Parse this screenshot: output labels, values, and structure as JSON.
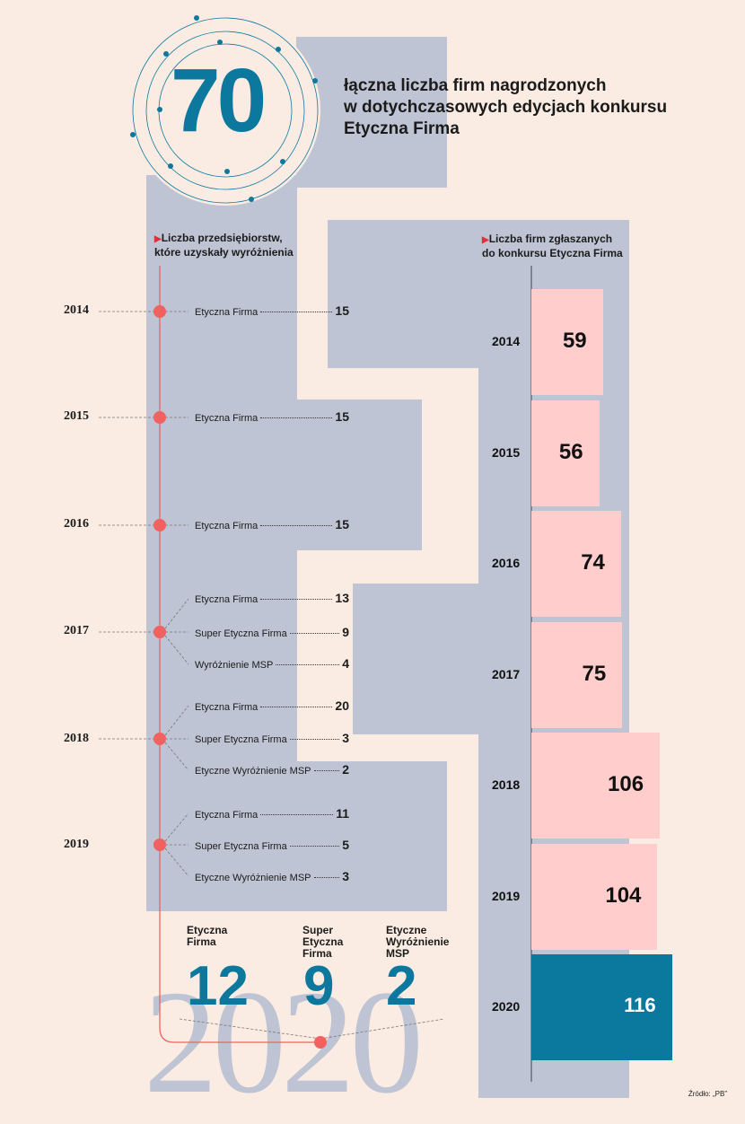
{
  "total": {
    "number": "70",
    "text_lines": [
      "łączna liczba firm nagrodzonych",
      "w dotychczasowych edycjach konkursu",
      "Etyczna Firma"
    ]
  },
  "left_heading": [
    "Liczba przedsiębiorstw,",
    "które uzyskały wyróżnienia"
  ],
  "right_heading": [
    "Liczba firm zgłaszanych",
    "do konkursu Etyczna Firma"
  ],
  "awards": [
    {
      "year": "2014",
      "items": [
        {
          "label": "Etyczna Firma",
          "value": "15"
        }
      ]
    },
    {
      "year": "2015",
      "items": [
        {
          "label": "Etyczna Firma",
          "value": "15"
        }
      ]
    },
    {
      "year": "2016",
      "items": [
        {
          "label": "Etyczna Firma",
          "value": "15"
        }
      ]
    },
    {
      "year": "2017",
      "items": [
        {
          "label": "Etyczna Firma",
          "value": "13"
        },
        {
          "label": "Super Etyczna Firma",
          "value": "9"
        },
        {
          "label": "Wyróżnienie MSP",
          "value": "4"
        }
      ]
    },
    {
      "year": "2018",
      "items": [
        {
          "label": "Etyczna Firma",
          "value": "20"
        },
        {
          "label": "Super Etyczna Firma",
          "value": "3"
        },
        {
          "label": "Etyczne Wyróżnienie MSP",
          "value": "2"
        }
      ]
    },
    {
      "year": "2019",
      "items": [
        {
          "label": "Etyczna Firma",
          "value": "11"
        },
        {
          "label": "Super Etyczna Firma",
          "value": "5"
        },
        {
          "label": "Etyczne Wyróżnienie MSP",
          "value": "3"
        }
      ]
    }
  ],
  "year_2020": {
    "year": "2020",
    "items": [
      {
        "label_lines": [
          "Etyczna",
          "Firma"
        ],
        "value": "12"
      },
      {
        "label_lines": [
          "Super",
          "Etyczna",
          "Firma"
        ],
        "value": "9"
      },
      {
        "label_lines": [
          "Etyczne",
          "Wyróżnienie",
          "MSP"
        ],
        "value": "2"
      }
    ]
  },
  "chart_data": {
    "type": "bar",
    "orientation": "horizontal",
    "title": "Liczba firm zgłaszanych do konkursu Etyczna Firma",
    "categories": [
      "2014",
      "2015",
      "2016",
      "2017",
      "2018",
      "2019",
      "2020"
    ],
    "values": [
      59,
      56,
      74,
      75,
      106,
      104,
      116
    ],
    "highlight": "2020",
    "colors": {
      "bar": "#fecdcc",
      "highlight": "#0b789e"
    }
  },
  "source": "Źródło: „PB”",
  "colors": {
    "accent": "#0d789d",
    "marker": "#f0615f",
    "band": "#bec4d3",
    "background": "#faece2"
  }
}
